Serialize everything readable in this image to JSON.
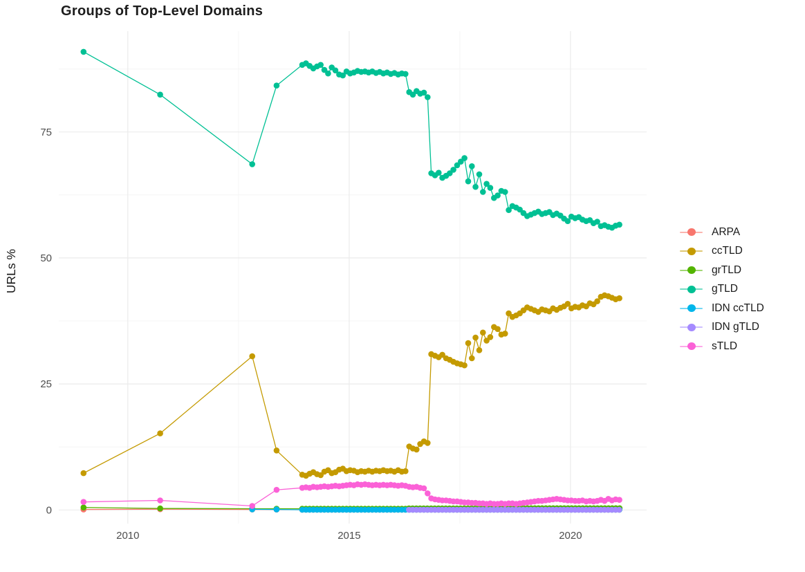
{
  "chart_data": {
    "type": "line",
    "title": "Groups of Top-Level Domains",
    "xlabel": "",
    "ylabel": "URLs %",
    "legend_position": "right",
    "grid": true,
    "x_axis": {
      "ticks": [
        2010,
        2015,
        2020
      ],
      "tick_labels": [
        "2010",
        "2015",
        "2020"
      ],
      "minor": [
        2012.5,
        2017.5
      ]
    },
    "y_axis": {
      "ticks": [
        0,
        25,
        50,
        75
      ],
      "tick_labels": [
        "0",
        "25",
        "50",
        "75"
      ],
      "minor": [
        12.5,
        37.5,
        62.5,
        87.5
      ]
    },
    "layout": {
      "xlim": [
        2008.44,
        2021.72
      ],
      "ylim": [
        -2.7,
        95.0
      ],
      "px": {
        "x": [
          85,
          935
        ],
        "y": [
          757,
          45
        ]
      },
      "major_grid": "#EBEBEB",
      "minor_grid": "#F5F5F5",
      "tick_color": "#4D4D4D",
      "text_color": "#1a1a1a",
      "point_radius": 4.3,
      "line_width": 1.3
    },
    "series": [
      {
        "name": "ARPA",
        "color": "#F8766D",
        "segments": [
          {
            "points": [
              [
                2009.0,
                0.1
              ],
              [
                2010.73,
                0.15
              ],
              [
                2012.81,
                0.1
              ],
              [
                2013.36,
                0.08
              ]
            ]
          },
          {
            "x0": 2013.94,
            "dx": 0.0833,
            "n": 87,
            "value": 0.05
          }
        ]
      },
      {
        "name": "ccTLD",
        "color": "#C49A00",
        "segments": [
          {
            "points": [
              [
                2009.0,
                7.3
              ],
              [
                2010.73,
                15.2
              ],
              [
                2012.81,
                30.5
              ],
              [
                2013.36,
                11.8
              ]
            ]
          },
          {
            "x0": 2013.94,
            "dx": 0.0833,
            "y": [
              7.0,
              6.8,
              7.2,
              7.5,
              7.1,
              6.9,
              7.6,
              7.9,
              7.3,
              7.5,
              8.0,
              8.2,
              7.7,
              7.9,
              7.8,
              7.5,
              7.7,
              7.6,
              7.8,
              7.6,
              7.8,
              7.7,
              7.9,
              7.7,
              7.8,
              7.6,
              7.9,
              7.6,
              7.7,
              12.6,
              12.2,
              12.0,
              13.1,
              13.6,
              13.3,
              30.9,
              30.6,
              30.3,
              30.8,
              30.1,
              29.8,
              29.4,
              29.1,
              28.9,
              28.7,
              33.1,
              30.1,
              34.2,
              31.7,
              35.2,
              33.6,
              34.3,
              36.3,
              35.9,
              34.8,
              35.0,
              39.0,
              38.3,
              38.6,
              39.0,
              39.6,
              40.2,
              39.9,
              39.6,
              39.3,
              39.8,
              39.6,
              39.4,
              40.0,
              39.7,
              40.1,
              40.4,
              40.9,
              40.0,
              40.3,
              40.2,
              40.6,
              40.4,
              41.0,
              40.8,
              41.4,
              42.3,
              42.6,
              42.4,
              42.1,
              41.8,
              42.0
            ]
          }
        ]
      },
      {
        "name": "grTLD",
        "color": "#53B400",
        "segments": [
          {
            "points": [
              [
                2009.0,
                0.5
              ],
              [
                2010.73,
                0.3
              ],
              [
                2012.81,
                0.25
              ],
              [
                2013.36,
                0.25
              ]
            ]
          },
          {
            "x0": 2013.94,
            "dx": 0.0833,
            "n": 29,
            "value": 0.25
          },
          {
            "x0": 2016.35,
            "dx": 0.0833,
            "n": 30,
            "value": 0.3
          },
          {
            "x0": 2018.86,
            "dx": 0.0833,
            "n": 28,
            "value": 0.35
          }
        ]
      },
      {
        "name": "gTLD",
        "color": "#00C094",
        "segments": [
          {
            "points": [
              [
                2009.0,
                90.9
              ],
              [
                2010.73,
                82.4
              ],
              [
                2012.81,
                68.6
              ],
              [
                2013.36,
                84.2
              ]
            ]
          },
          {
            "x0": 2013.94,
            "dx": 0.0833,
            "y": [
              88.3,
              88.6,
              88.1,
              87.6,
              88.0,
              88.3,
              87.3,
              86.6,
              87.8,
              87.2,
              86.4,
              86.2,
              87.0,
              86.6,
              86.8,
              87.1,
              86.9,
              87.0,
              86.8,
              87.0,
              86.7,
              86.9,
              86.6,
              86.8,
              86.5,
              86.7,
              86.4,
              86.6,
              86.5,
              82.9,
              82.4,
              83.1,
              82.6,
              82.8,
              81.9,
              66.8,
              66.4,
              66.9,
              65.9,
              66.3,
              66.8,
              67.5,
              68.4,
              69.1,
              69.8,
              65.2,
              68.2,
              64.1,
              66.6,
              63.1,
              64.7,
              63.9,
              61.9,
              62.4,
              63.3,
              63.1,
              59.5,
              60.3,
              60.0,
              59.6,
              58.9,
              58.3,
              58.6,
              58.9,
              59.2,
              58.7,
              58.9,
              59.1,
              58.5,
              58.8,
              58.4,
              57.8,
              57.3,
              58.2,
              57.9,
              58.1,
              57.6,
              57.3,
              57.5,
              56.9,
              57.2,
              56.3,
              56.5,
              56.2,
              56.0,
              56.4,
              56.6
            ]
          }
        ]
      },
      {
        "name": "IDN ccTLD",
        "color": "#00B6EB",
        "segments": [
          {
            "points": [
              [
                2012.81,
                0.12
              ],
              [
                2013.36,
                0.1
              ]
            ]
          },
          {
            "x0": 2013.94,
            "dx": 0.0833,
            "n": 87,
            "value": 0.05
          }
        ]
      },
      {
        "name": "IDN gTLD",
        "color": "#A58AFF",
        "segments": [
          {
            "x0": 2016.35,
            "dx": 0.0833,
            "n": 58,
            "value": 0.04
          }
        ]
      },
      {
        "name": "sTLD",
        "color": "#FB61D7",
        "segments": [
          {
            "points": [
              [
                2009.0,
                1.6
              ],
              [
                2010.73,
                1.9
              ],
              [
                2012.81,
                0.8
              ],
              [
                2013.36,
                4.0
              ]
            ]
          },
          {
            "x0": 2013.94,
            "dx": 0.0833,
            "y": [
              4.4,
              4.5,
              4.4,
              4.6,
              4.5,
              4.6,
              4.7,
              4.6,
              4.7,
              4.8,
              4.7,
              4.8,
              4.9,
              5.0,
              4.9,
              5.1,
              5.0,
              5.1,
              5.0,
              4.9,
              5.0,
              4.9,
              5.0,
              4.9,
              5.0,
              4.9,
              4.8,
              4.9,
              4.8,
              4.6,
              4.5,
              4.6,
              4.4,
              4.3,
              3.3,
              2.3,
              2.1,
              2.0,
              1.9,
              1.9,
              1.8,
              1.7,
              1.7,
              1.6,
              1.5,
              1.5,
              1.4,
              1.4,
              1.3,
              1.3,
              1.2,
              1.3,
              1.2,
              1.2,
              1.3,
              1.2,
              1.3,
              1.3,
              1.2,
              1.3,
              1.4,
              1.5,
              1.6,
              1.7,
              1.8,
              1.8,
              1.9,
              2.0,
              2.1,
              2.2,
              2.1,
              2.0,
              1.9,
              1.9,
              1.8,
              1.8,
              1.9,
              1.7,
              1.8,
              1.7,
              1.8,
              2.0,
              1.8,
              2.2,
              1.9,
              2.1,
              2.0
            ]
          }
        ]
      }
    ]
  }
}
